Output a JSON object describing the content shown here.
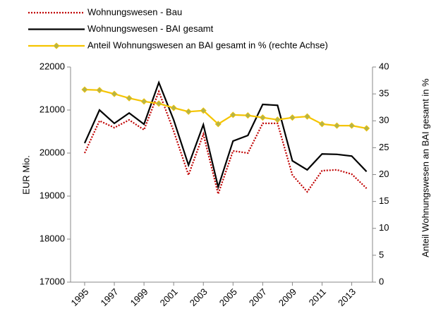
{
  "chart_data": {
    "type": "line",
    "y_label": "EUR Mio.",
    "y2_label": "Anteil Wohnungswesen an BAI gesamt in %",
    "x": [
      1995,
      1996,
      1997,
      1998,
      1999,
      2000,
      2001,
      2002,
      2003,
      2004,
      2005,
      2006,
      2007,
      2008,
      2009,
      2010,
      2011,
      2012,
      2013,
      2014
    ],
    "xlim": [
      1994.05,
      2014.4
    ],
    "xticks": [
      1995,
      1997,
      1999,
      2001,
      2003,
      2005,
      2007,
      2009,
      2011,
      2013
    ],
    "ylim": [
      17000,
      22000
    ],
    "yticks": [
      17000,
      18000,
      19000,
      20000,
      21000,
      22000
    ],
    "y2lim": [
      0,
      40
    ],
    "y2ticks": [
      0,
      5,
      10,
      15,
      20,
      25,
      30,
      35,
      40
    ],
    "grid": false,
    "series": [
      {
        "name": "Wohnungswesen - Bau",
        "color": "#c00000",
        "style": "dotted",
        "values": [
          20000,
          20750,
          20590,
          20770,
          20540,
          21430,
          20510,
          19490,
          20440,
          19050,
          20050,
          20000,
          20690,
          20690,
          19490,
          19100,
          19590,
          19610,
          19510,
          19180
        ]
      },
      {
        "name": "Wohnungswesen - BAI gesamt",
        "color": "#000000",
        "style": "solid",
        "values": [
          20230,
          21000,
          20690,
          20930,
          20670,
          21640,
          20770,
          19720,
          20660,
          19210,
          20280,
          20410,
          21130,
          21110,
          19820,
          19610,
          19980,
          19970,
          19930,
          19570
        ]
      },
      {
        "name": "Anteil Wohnungswesen an BAI gesamt in %  (rechte Achse)",
        "color": "#f5c400",
        "style": "solid",
        "marker_color": "#b4b44a",
        "axis": "y2",
        "values": [
          35.8,
          35.7,
          35.0,
          34.2,
          33.6,
          33.2,
          32.4,
          31.7,
          31.9,
          29.4,
          31.1,
          31.0,
          30.6,
          30.2,
          30.6,
          30.8,
          29.4,
          29.1,
          29.1,
          28.6
        ]
      }
    ]
  }
}
